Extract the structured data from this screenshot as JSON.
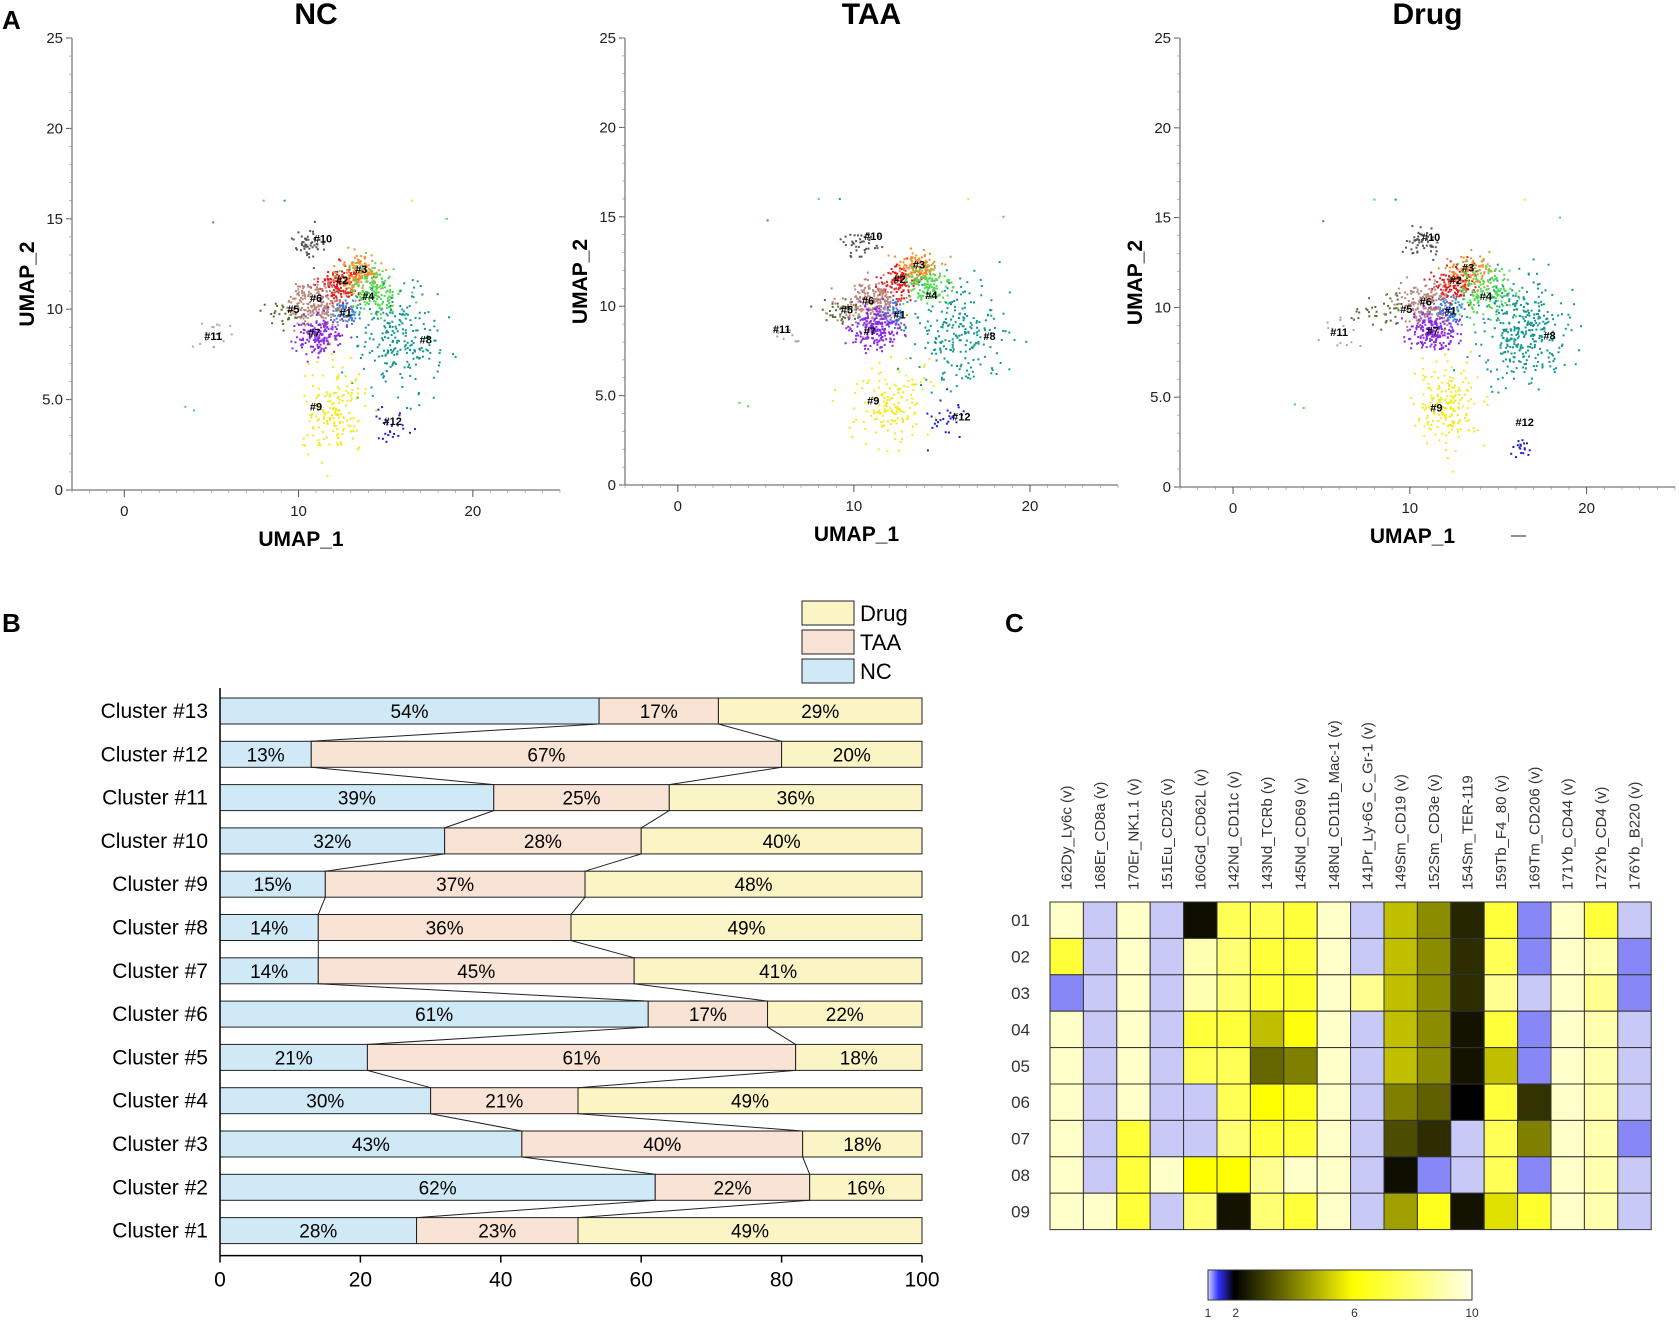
{
  "panel_labels": {
    "a": "A",
    "b": "B",
    "c": "C"
  },
  "colors": {
    "nc": "#cfe9f7",
    "taa": "#f8e3d4",
    "drug": "#fbf5c5",
    "clusters": [
      "#3b7dd8",
      "#e41a1c",
      "#f28e2b",
      "#4fd94f",
      "#556b2f",
      "#b8867b",
      "#8a2be2",
      "#139890",
      "#f2ea1d",
      "#555555",
      "#aaaaaa",
      "#1f1fd6"
    ]
  },
  "chart_data": [
    {
      "type": "scatter",
      "panel": "umap",
      "xlabel": "UMAP_1",
      "ylabel": "UMAP_2",
      "xlim": [
        -3,
        25
      ],
      "ylim": [
        0,
        25
      ],
      "xticks": [
        "0",
        "10",
        "20"
      ],
      "yticks": [
        "0",
        "5.0",
        "10",
        "15",
        "20",
        "25"
      ],
      "stray_mark": "—",
      "subplots": [
        {
          "title": "NC",
          "labels": [
            {
              "text": "#1",
              "x": 12.7,
              "y": 9.6
            },
            {
              "text": "#2",
              "x": 12.5,
              "y": 11.4
            },
            {
              "text": "#3",
              "x": 13.6,
              "y": 12.0
            },
            {
              "text": "#4",
              "x": 14.0,
              "y": 10.5
            },
            {
              "text": "#5",
              "x": 9.7,
              "y": 9.8
            },
            {
              "text": "#6",
              "x": 11.0,
              "y": 10.4
            },
            {
              "text": "#7",
              "x": 10.9,
              "y": 8.5
            },
            {
              "text": "#8",
              "x": 17.3,
              "y": 8.1
            },
            {
              "text": "#9",
              "x": 11.0,
              "y": 4.4
            },
            {
              "text": "#10",
              "x": 11.4,
              "y": 13.7
            },
            {
              "text": "#11",
              "x": 5.1,
              "y": 8.3
            },
            {
              "text": "#12",
              "x": 15.4,
              "y": 3.6
            }
          ],
          "clusters": [
            {
              "id": 1,
              "x": 12.6,
              "y": 9.9,
              "sx": 0.5,
              "sy": 0.4,
              "n": 80
            },
            {
              "id": 2,
              "x": 12.4,
              "y": 11.4,
              "sx": 0.6,
              "sy": 0.5,
              "n": 150
            },
            {
              "id": 3,
              "x": 13.5,
              "y": 12.0,
              "sx": 0.6,
              "sy": 0.5,
              "n": 150
            },
            {
              "id": 4,
              "x": 14.4,
              "y": 11.0,
              "sx": 0.8,
              "sy": 0.7,
              "n": 170
            },
            {
              "id": 5,
              "x": 9.3,
              "y": 9.8,
              "sx": 0.8,
              "sy": 0.3,
              "n": 30
            },
            {
              "id": 6,
              "x": 11.0,
              "y": 10.3,
              "sx": 0.8,
              "sy": 0.6,
              "n": 200
            },
            {
              "id": 7,
              "x": 11.2,
              "y": 8.5,
              "sx": 0.7,
              "sy": 0.5,
              "n": 170
            },
            {
              "id": 8,
              "x": 15.8,
              "y": 8.3,
              "sx": 1.1,
              "sy": 1.4,
              "n": 220
            },
            {
              "id": 9,
              "x": 12.1,
              "y": 4.4,
              "sx": 0.9,
              "sy": 1.2,
              "n": 170
            },
            {
              "id": 10,
              "x": 10.6,
              "y": 13.5,
              "sx": 0.5,
              "sy": 0.4,
              "n": 50
            },
            {
              "id": 11,
              "x": 5.1,
              "y": 8.5,
              "sx": 0.6,
              "sy": 0.4,
              "n": 20
            },
            {
              "id": 12,
              "x": 15.2,
              "y": 3.6,
              "sx": 0.6,
              "sy": 0.6,
              "n": 25
            }
          ]
        },
        {
          "title": "TAA",
          "labels": [
            {
              "text": "#1",
              "x": 12.6,
              "y": 9.3
            },
            {
              "text": "#2",
              "x": 12.6,
              "y": 11.3
            },
            {
              "text": "#3",
              "x": 13.7,
              "y": 12.1
            },
            {
              "text": "#4",
              "x": 14.4,
              "y": 10.4
            },
            {
              "text": "#5",
              "x": 9.6,
              "y": 9.6
            },
            {
              "text": "#6",
              "x": 10.8,
              "y": 10.1
            },
            {
              "text": "#7",
              "x": 10.9,
              "y": 8.4
            },
            {
              "text": "#8",
              "x": 17.7,
              "y": 8.1
            },
            {
              "text": "#9",
              "x": 11.1,
              "y": 4.5
            },
            {
              "text": "#10",
              "x": 11.1,
              "y": 13.7
            },
            {
              "text": "#11",
              "x": 5.9,
              "y": 8.5
            },
            {
              "text": "#12",
              "x": 16.1,
              "y": 3.6
            }
          ],
          "clusters": [
            {
              "id": 1,
              "x": 12.3,
              "y": 9.7,
              "sx": 0.5,
              "sy": 0.4,
              "n": 70
            },
            {
              "id": 2,
              "x": 12.6,
              "y": 11.3,
              "sx": 0.5,
              "sy": 0.5,
              "n": 110
            },
            {
              "id": 3,
              "x": 13.6,
              "y": 12.2,
              "sx": 0.6,
              "sy": 0.4,
              "n": 130
            },
            {
              "id": 4,
              "x": 14.2,
              "y": 11.1,
              "sx": 0.7,
              "sy": 0.6,
              "n": 130
            },
            {
              "id": 5,
              "x": 9.4,
              "y": 9.7,
              "sx": 0.8,
              "sy": 0.4,
              "n": 40
            },
            {
              "id": 6,
              "x": 10.9,
              "y": 10.2,
              "sx": 0.8,
              "sy": 0.6,
              "n": 200
            },
            {
              "id": 7,
              "x": 11.3,
              "y": 8.7,
              "sx": 0.7,
              "sy": 0.6,
              "n": 200
            },
            {
              "id": 8,
              "x": 16.0,
              "y": 8.6,
              "sx": 1.2,
              "sy": 1.4,
              "n": 220
            },
            {
              "id": 9,
              "x": 12.1,
              "y": 4.6,
              "sx": 1.0,
              "sy": 1.2,
              "n": 160
            },
            {
              "id": 10,
              "x": 10.3,
              "y": 13.5,
              "sx": 0.5,
              "sy": 0.4,
              "n": 40
            },
            {
              "id": 11,
              "x": 6.2,
              "y": 8.3,
              "sx": 0.5,
              "sy": 0.4,
              "n": 12
            },
            {
              "id": 12,
              "x": 15.2,
              "y": 3.7,
              "sx": 0.6,
              "sy": 0.6,
              "n": 30
            }
          ]
        },
        {
          "title": "Drug",
          "labels": [
            {
              "text": "#1",
              "x": 12.3,
              "y": 9.6
            },
            {
              "text": "#2",
              "x": 12.6,
              "y": 11.3
            },
            {
              "text": "#3",
              "x": 13.3,
              "y": 12.0
            },
            {
              "text": "#4",
              "x": 14.3,
              "y": 10.4
            },
            {
              "text": "#5",
              "x": 9.8,
              "y": 9.7
            },
            {
              "text": "#6",
              "x": 10.9,
              "y": 10.1
            },
            {
              "text": "#7",
              "x": 11.3,
              "y": 8.5
            },
            {
              "text": "#8",
              "x": 17.9,
              "y": 8.2
            },
            {
              "text": "#9",
              "x": 11.5,
              "y": 4.2
            },
            {
              "text": "#10",
              "x": 11.2,
              "y": 13.7
            },
            {
              "text": "#11",
              "x": 6.0,
              "y": 8.4
            },
            {
              "text": "#12",
              "x": 16.5,
              "y": 3.4
            }
          ],
          "clusters": [
            {
              "id": 1,
              "x": 12.3,
              "y": 9.9,
              "sx": 0.5,
              "sy": 0.4,
              "n": 90
            },
            {
              "id": 2,
              "x": 12.5,
              "y": 11.3,
              "sx": 0.6,
              "sy": 0.5,
              "n": 130
            },
            {
              "id": 3,
              "x": 13.3,
              "y": 12.0,
              "sx": 0.6,
              "sy": 0.5,
              "n": 100
            },
            {
              "id": 4,
              "x": 14.3,
              "y": 11.0,
              "sx": 0.8,
              "sy": 0.7,
              "n": 160
            },
            {
              "id": 5,
              "x": 8.4,
              "y": 9.8,
              "sx": 1.0,
              "sy": 0.4,
              "n": 40
            },
            {
              "id": 6,
              "x": 10.9,
              "y": 10.2,
              "sx": 0.8,
              "sy": 0.6,
              "n": 170
            },
            {
              "id": 7,
              "x": 11.3,
              "y": 8.7,
              "sx": 0.7,
              "sy": 0.5,
              "n": 200
            },
            {
              "id": 8,
              "x": 16.5,
              "y": 8.8,
              "sx": 1.2,
              "sy": 1.3,
              "n": 330
            },
            {
              "id": 9,
              "x": 12.1,
              "y": 4.6,
              "sx": 0.9,
              "sy": 1.1,
              "n": 200
            },
            {
              "id": 10,
              "x": 10.7,
              "y": 13.6,
              "sx": 0.5,
              "sy": 0.4,
              "n": 50
            },
            {
              "id": 11,
              "x": 6.1,
              "y": 8.4,
              "sx": 0.6,
              "sy": 0.4,
              "n": 15
            },
            {
              "id": 12,
              "x": 16.3,
              "y": 2.1,
              "sx": 0.2,
              "sy": 0.3,
              "n": 18
            }
          ]
        }
      ]
    },
    {
      "type": "bar",
      "panel": "cluster-composition",
      "stacked": true,
      "orientation": "horizontal",
      "xlim": [
        0,
        100
      ],
      "xticks": [
        0,
        20,
        40,
        60,
        80,
        100
      ],
      "legend": [
        "Drug",
        "TAA",
        "NC"
      ],
      "series_names": [
        "NC",
        "TAA",
        "Drug"
      ],
      "categories": [
        "Cluster #13",
        "Cluster #12",
        "Cluster #11",
        "Cluster #10",
        "Cluster #9",
        "Cluster #8",
        "Cluster #7",
        "Cluster #6",
        "Cluster #5",
        "Cluster #4",
        "Cluster #3",
        "Cluster #2",
        "Cluster #1"
      ],
      "values": [
        [
          54,
          17,
          29
        ],
        [
          13,
          67,
          20
        ],
        [
          39,
          25,
          36
        ],
        [
          32,
          28,
          40
        ],
        [
          15,
          37,
          48
        ],
        [
          14,
          36,
          49
        ],
        [
          14,
          45,
          41
        ],
        [
          61,
          17,
          22
        ],
        [
          21,
          61,
          18
        ],
        [
          30,
          21,
          49
        ],
        [
          43,
          40,
          18
        ],
        [
          62,
          22,
          16
        ],
        [
          28,
          23,
          49
        ]
      ],
      "labels": [
        [
          "54%",
          "17%",
          "29%"
        ],
        [
          "13%",
          "67%",
          "20%"
        ],
        [
          "39%",
          "25%",
          "36%"
        ],
        [
          "32%",
          "28%",
          "40%"
        ],
        [
          "15%",
          "37%",
          "48%"
        ],
        [
          "14%",
          "36%",
          "49%"
        ],
        [
          "14%",
          "45%",
          "41%"
        ],
        [
          "61%",
          "17%",
          "22%"
        ],
        [
          "21%",
          "61%",
          "18%"
        ],
        [
          "30%",
          "21%",
          "49%"
        ],
        [
          "43%",
          "40%",
          "18%"
        ],
        [
          "62%",
          "22%",
          "16%"
        ],
        [
          "28%",
          "23%",
          "49%"
        ]
      ]
    },
    {
      "type": "heatmap",
      "panel": "marker-expression",
      "columns": [
        "162Dy_Ly6c (v)",
        "168Er_CD8a (v)",
        "170Er_NK1.1 (v)",
        "151Eu_CD25 (v)",
        "160Gd_CD62L (v)",
        "142Nd_CD11c (v)",
        "143Nd_TCRb (v)",
        "145Nd_CD69 (v)",
        "148Nd_CD11b_Mac-1 (v)",
        "141Pr_Ly-6G_C_Gr-1 (v)",
        "149Sm_CD19 (v)",
        "152Sm_CD3e (v)",
        "154Sm_TER-119",
        "159Tb_F4_80 (v)",
        "169Tm_CD206 (v)",
        "171Yb_CD44 (v)",
        "172Yb_CD4 (v)",
        "176Yb_B220 (v)"
      ],
      "rows": [
        "01",
        "02",
        "03",
        "04",
        "05",
        "06",
        "07",
        "08",
        "09"
      ],
      "values": [
        [
          9.5,
          1.6,
          9.5,
          1.6,
          2.2,
          7.5,
          7.5,
          7.0,
          9.5,
          1.6,
          5.0,
          4.2,
          2.6,
          7.0,
          1.3,
          9.5,
          7.0,
          1.6
        ],
        [
          7.0,
          1.6,
          9.5,
          1.6,
          9.0,
          8.0,
          7.0,
          7.0,
          9.5,
          1.4,
          5.0,
          4.2,
          2.7,
          7.5,
          1.3,
          9.5,
          9.0,
          1.3
        ],
        [
          1.3,
          1.6,
          9.5,
          1.6,
          9.0,
          8.0,
          7.0,
          6.8,
          9.5,
          8.5,
          5.0,
          4.2,
          2.7,
          8.5,
          1.6,
          9.5,
          8.5,
          1.3
        ],
        [
          9.5,
          1.6,
          9.5,
          1.6,
          7.0,
          7.0,
          5.0,
          6.2,
          9.5,
          1.6,
          5.0,
          4.2,
          2.3,
          7.0,
          1.3,
          9.5,
          9.0,
          1.6
        ],
        [
          9.5,
          1.6,
          9.5,
          1.6,
          7.5,
          7.5,
          3.6,
          4.0,
          9.5,
          1.6,
          5.0,
          4.2,
          2.3,
          5.0,
          1.3,
          9.5,
          9.0,
          1.6
        ],
        [
          9.5,
          1.6,
          9.5,
          1.6,
          1.4,
          7.5,
          6.0,
          6.5,
          9.5,
          1.6,
          4.0,
          3.5,
          2.0,
          7.0,
          2.8,
          9.5,
          9.0,
          1.6
        ],
        [
          9.5,
          1.6,
          7.0,
          1.6,
          1.6,
          8.0,
          7.0,
          7.0,
          9.5,
          1.6,
          3.2,
          2.7,
          1.5,
          7.5,
          4.0,
          9.5,
          9.0,
          1.3
        ],
        [
          9.5,
          1.6,
          7.0,
          9.5,
          6.0,
          6.0,
          8.5,
          9.5,
          9.5,
          1.6,
          2.2,
          1.3,
          1.6,
          7.5,
          1.3,
          9.5,
          9.0,
          1.6
        ],
        [
          9.5,
          9.5,
          7.0,
          1.6,
          8.0,
          2.3,
          8.0,
          7.0,
          9.5,
          1.6,
          4.5,
          6.5,
          2.3,
          5.5,
          6.8,
          9.5,
          9.0,
          1.6
        ]
      ],
      "colorbar": {
        "range": [
          1,
          10
        ],
        "ticks": [
          "1",
          "2",
          "6",
          "10"
        ]
      }
    }
  ]
}
